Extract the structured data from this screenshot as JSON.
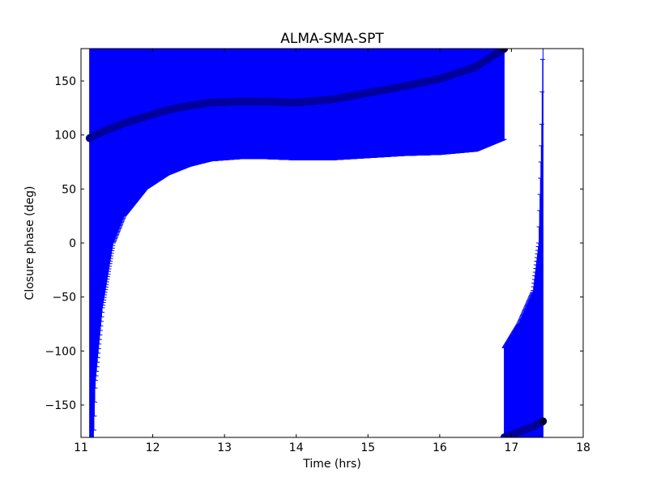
{
  "chart_data": {
    "type": "scatter",
    "title": "ALMA-SMA-SPT",
    "xlabel": "Time (hrs)",
    "ylabel": "Closure phase (deg)",
    "xlim": [
      11,
      18
    ],
    "ylim": [
      -180,
      180
    ],
    "xticks": [
      "11",
      "12",
      "13",
      "14",
      "15",
      "16",
      "17",
      "18"
    ],
    "yticks": [
      "−150",
      "−100",
      "−50",
      "0",
      "50",
      "100",
      "150"
    ],
    "grid": false,
    "error_bars": true,
    "colors": {
      "marker": "#000022",
      "errorbar": "#0000ff"
    },
    "series": [
      {
        "x": [
          11.12,
          11.2,
          11.3,
          11.45,
          11.6,
          11.9,
          12.2,
          12.5,
          12.8,
          13.2,
          13.6,
          14.0,
          14.5,
          15.0,
          15.5,
          16.0,
          16.5,
          16.9
        ],
        "y": [
          97,
          100,
          103,
          107,
          111,
          117,
          123,
          127,
          130,
          131,
          131,
          130,
          133,
          139,
          145,
          152,
          163,
          180
        ],
        "err": [
          400,
          230,
          163,
          107,
          86,
          67,
          60,
          56,
          54,
          53,
          53,
          53,
          56,
          60,
          64,
          70,
          78,
          84
        ]
      },
      {
        "x": [
          16.9,
          17.1,
          17.3,
          17.38,
          17.42,
          17.44
        ],
        "y": [
          -180,
          -175,
          -170,
          -167,
          -166,
          -165
        ],
        "err": [
          83,
          100,
          125,
          167,
          266,
          365
        ]
      }
    ]
  }
}
